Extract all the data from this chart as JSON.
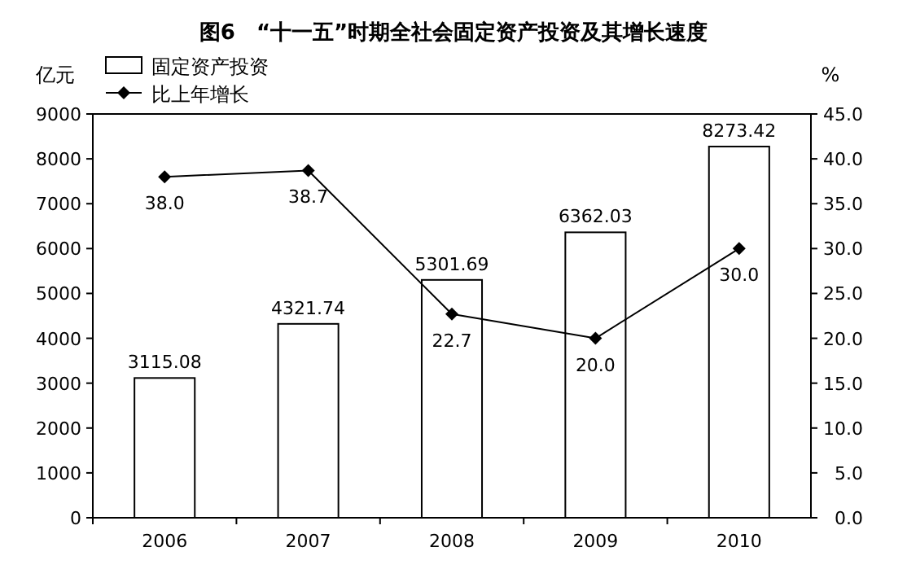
{
  "chart_data": {
    "type": "bar",
    "title": "图6　“十一五”时期全社会固定资产投资及其增长速度",
    "ylabel": "亿元",
    "y2label": "%",
    "categories": [
      "2006",
      "2007",
      "2008",
      "2009",
      "2010"
    ],
    "series": [
      {
        "name": "固定资产投资",
        "color": "#ffffff",
        "values": [
          3115.08,
          4321.74,
          5301.69,
          6362.03,
          8273.42
        ],
        "value_labels": [
          "3115.08",
          "4321.74",
          "5301.69",
          "6362.03",
          "8273.42"
        ]
      },
      {
        "name": "比上年增长",
        "type": "line",
        "axis": "y2",
        "color": "#000000",
        "marker": "diamond",
        "values": [
          38.0,
          38.7,
          22.7,
          20.0,
          30.0
        ],
        "value_labels": [
          "38.0",
          "38.7",
          "22.7",
          "20.0",
          "30.0"
        ]
      }
    ],
    "ylim": [
      0,
      9000
    ],
    "yticks": [
      0,
      1000,
      2000,
      3000,
      4000,
      5000,
      6000,
      7000,
      8000,
      9000
    ],
    "y2lim": [
      0,
      45
    ],
    "y2ticks": [
      {
        "value": 0,
        "label": "0.0"
      },
      {
        "value": 5,
        "label": "5.0"
      },
      {
        "value": 10,
        "label": "10.0"
      },
      {
        "value": 15,
        "label": "15.0"
      },
      {
        "value": 20,
        "label": "20.0"
      },
      {
        "value": 25,
        "label": "25.0"
      },
      {
        "value": 30,
        "label": "30.0"
      },
      {
        "value": 35,
        "label": "35.0"
      },
      {
        "value": 40,
        "label": "40.0"
      },
      {
        "value": 45,
        "label": "45.0"
      }
    ],
    "legend": "top left"
  }
}
